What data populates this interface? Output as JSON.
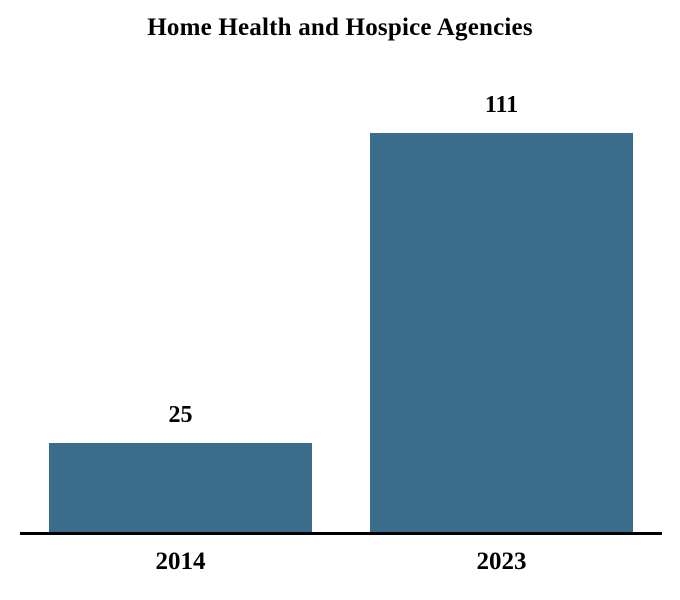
{
  "chart_data": {
    "type": "bar",
    "title": "Home Health and Hospice Agencies",
    "categories": [
      "2014",
      "2023"
    ],
    "values": [
      25,
      111
    ],
    "xlabel": "",
    "ylabel": "",
    "ylim": [
      0,
      111
    ],
    "grid": false,
    "legend": false,
    "value_labels_shown": true,
    "bar_color": "#3A6D8C",
    "axis_color": "#000000",
    "text_color": "#000000",
    "background_color": "#FFFFFF"
  }
}
